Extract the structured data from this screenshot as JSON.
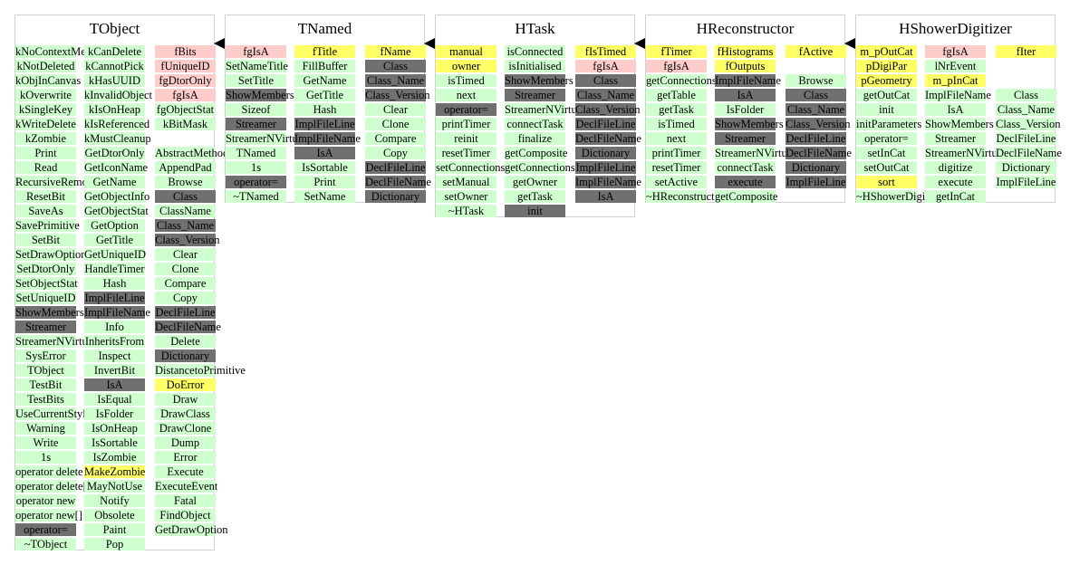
{
  "classes": [
    {
      "name": "TObject",
      "columns": [
        [
          {
            "t": "kNoContextMenu",
            "c": "g"
          },
          {
            "t": "kNotDeleted",
            "c": "g"
          },
          {
            "t": "kObjInCanvas",
            "c": "g"
          },
          {
            "t": "kOverwrite",
            "c": "g"
          },
          {
            "t": "kSingleKey",
            "c": "g"
          },
          {
            "t": "kWriteDelete",
            "c": "g"
          },
          {
            "t": "kZombie",
            "c": "g"
          },
          {
            "t": "Print",
            "c": "g"
          },
          {
            "t": "Read",
            "c": "g"
          },
          {
            "t": "RecursiveRemove",
            "c": "g"
          },
          {
            "t": "ResetBit",
            "c": "g"
          },
          {
            "t": "SaveAs",
            "c": "g"
          },
          {
            "t": "SavePrimitive",
            "c": "g"
          },
          {
            "t": "SetBit",
            "c": "g"
          },
          {
            "t": "SetDrawOption",
            "c": "g"
          },
          {
            "t": "SetDtorOnly",
            "c": "g"
          },
          {
            "t": "SetObjectStat",
            "c": "g"
          },
          {
            "t": "SetUniqueID",
            "c": "g"
          },
          {
            "t": "ShowMembers",
            "c": "d"
          },
          {
            "t": "Streamer",
            "c": "d"
          },
          {
            "t": "StreamerNVirtual",
            "c": "g"
          },
          {
            "t": "SysError",
            "c": "g"
          },
          {
            "t": "TObject",
            "c": "g"
          },
          {
            "t": "TestBit",
            "c": "g"
          },
          {
            "t": "TestBits",
            "c": "g"
          },
          {
            "t": "UseCurrentStyle",
            "c": "g"
          },
          {
            "t": "Warning",
            "c": "g"
          },
          {
            "t": "Write",
            "c": "g"
          },
          {
            "t": "1s",
            "c": "g"
          },
          {
            "t": "operator delete",
            "c": "g"
          },
          {
            "t": "operator delete[]",
            "c": "g"
          },
          {
            "t": "operator new",
            "c": "g"
          },
          {
            "t": "operator new[]",
            "c": "g"
          },
          {
            "t": "operator=",
            "c": "d"
          },
          {
            "t": "~TObject",
            "c": "g"
          }
        ],
        [
          {
            "t": "kCanDelete",
            "c": "g"
          },
          {
            "t": "kCannotPick",
            "c": "g"
          },
          {
            "t": "kHasUUID",
            "c": "g"
          },
          {
            "t": "kInvalidObject",
            "c": "g"
          },
          {
            "t": "kIsOnHeap",
            "c": "g"
          },
          {
            "t": "kIsReferenced",
            "c": "g"
          },
          {
            "t": "kMustCleanup",
            "c": "g"
          },
          {
            "t": "GetDtorOnly",
            "c": "g"
          },
          {
            "t": "GetIconName",
            "c": "g"
          },
          {
            "t": "GetName",
            "c": "g"
          },
          {
            "t": "GetObjectInfo",
            "c": "g"
          },
          {
            "t": "GetObjectStat",
            "c": "g"
          },
          {
            "t": "GetOption",
            "c": "g"
          },
          {
            "t": "GetTitle",
            "c": "g"
          },
          {
            "t": "GetUniqueID",
            "c": "g"
          },
          {
            "t": "HandleTimer",
            "c": "g"
          },
          {
            "t": "Hash",
            "c": "g"
          },
          {
            "t": "ImplFileLine",
            "c": "d"
          },
          {
            "t": "ImplFileName",
            "c": "d"
          },
          {
            "t": "Info",
            "c": "g"
          },
          {
            "t": "InheritsFrom",
            "c": "g"
          },
          {
            "t": "Inspect",
            "c": "g"
          },
          {
            "t": "InvertBit",
            "c": "g"
          },
          {
            "t": "IsA",
            "c": "d"
          },
          {
            "t": "IsEqual",
            "c": "g"
          },
          {
            "t": "IsFolder",
            "c": "g"
          },
          {
            "t": "IsOnHeap",
            "c": "g"
          },
          {
            "t": "IsSortable",
            "c": "g"
          },
          {
            "t": "IsZombie",
            "c": "g"
          },
          {
            "t": "MakeZombie",
            "c": "y"
          },
          {
            "t": "MayNotUse",
            "c": "g"
          },
          {
            "t": "Notify",
            "c": "g"
          },
          {
            "t": "Obsolete",
            "c": "g"
          },
          {
            "t": "Paint",
            "c": "g"
          },
          {
            "t": "Pop",
            "c": "g"
          }
        ],
        [
          {
            "t": "fBits",
            "c": "p"
          },
          {
            "t": "fUniqueID",
            "c": "p"
          },
          {
            "t": "fgDtorOnly",
            "c": "p"
          },
          {
            "t": "fgIsA",
            "c": "p"
          },
          {
            "t": "fgObjectStat",
            "c": "g"
          },
          {
            "t": "kBitMask",
            "c": "g"
          },
          {
            "t": "",
            "c": "n"
          },
          {
            "t": "AbstractMethod",
            "c": "g"
          },
          {
            "t": "AppendPad",
            "c": "g"
          },
          {
            "t": "Browse",
            "c": "g"
          },
          {
            "t": "Class",
            "c": "d"
          },
          {
            "t": "ClassName",
            "c": "g"
          },
          {
            "t": "Class_Name",
            "c": "d"
          },
          {
            "t": "Class_Version",
            "c": "d"
          },
          {
            "t": "Clear",
            "c": "g"
          },
          {
            "t": "Clone",
            "c": "g"
          },
          {
            "t": "Compare",
            "c": "g"
          },
          {
            "t": "Copy",
            "c": "g"
          },
          {
            "t": "DeclFileLine",
            "c": "d"
          },
          {
            "t": "DeclFileName",
            "c": "d"
          },
          {
            "t": "Delete",
            "c": "g"
          },
          {
            "t": "Dictionary",
            "c": "d"
          },
          {
            "t": "DistancetoPrimitive",
            "c": "g"
          },
          {
            "t": "DoError",
            "c": "y"
          },
          {
            "t": "Draw",
            "c": "g"
          },
          {
            "t": "DrawClass",
            "c": "g"
          },
          {
            "t": "DrawClone",
            "c": "g"
          },
          {
            "t": "Dump",
            "c": "g"
          },
          {
            "t": "Error",
            "c": "g"
          },
          {
            "t": "Execute",
            "c": "g"
          },
          {
            "t": "ExecuteEvent",
            "c": "g"
          },
          {
            "t": "Fatal",
            "c": "g"
          },
          {
            "t": "FindObject",
            "c": "g"
          },
          {
            "t": "GetDrawOption",
            "c": "g"
          }
        ]
      ]
    },
    {
      "name": "TNamed",
      "columns": [
        [
          {
            "t": "fgIsA",
            "c": "p"
          },
          {
            "t": "SetNameTitle",
            "c": "g"
          },
          {
            "t": "SetTitle",
            "c": "g"
          },
          {
            "t": "ShowMembers",
            "c": "d"
          },
          {
            "t": "Sizeof",
            "c": "g"
          },
          {
            "t": "Streamer",
            "c": "d"
          },
          {
            "t": "StreamerNVirtual",
            "c": "g"
          },
          {
            "t": "TNamed",
            "c": "g"
          },
          {
            "t": "1s",
            "c": "g"
          },
          {
            "t": "operator=",
            "c": "d"
          },
          {
            "t": "~TNamed",
            "c": "g"
          }
        ],
        [
          {
            "t": "fTitle",
            "c": "y"
          },
          {
            "t": "FillBuffer",
            "c": "g"
          },
          {
            "t": "GetName",
            "c": "g"
          },
          {
            "t": "GetTitle",
            "c": "g"
          },
          {
            "t": "Hash",
            "c": "g"
          },
          {
            "t": "ImplFileLine",
            "c": "d"
          },
          {
            "t": "ImplFileName",
            "c": "d"
          },
          {
            "t": "IsA",
            "c": "d"
          },
          {
            "t": "IsSortable",
            "c": "g"
          },
          {
            "t": "Print",
            "c": "g"
          },
          {
            "t": "SetName",
            "c": "g"
          }
        ],
        [
          {
            "t": "fName",
            "c": "y"
          },
          {
            "t": "Class",
            "c": "d"
          },
          {
            "t": "Class_Name",
            "c": "d"
          },
          {
            "t": "Class_Version",
            "c": "d"
          },
          {
            "t": "Clear",
            "c": "g"
          },
          {
            "t": "Clone",
            "c": "g"
          },
          {
            "t": "Compare",
            "c": "g"
          },
          {
            "t": "Copy",
            "c": "g"
          },
          {
            "t": "DeclFileLine",
            "c": "d"
          },
          {
            "t": "DeclFileName",
            "c": "d"
          },
          {
            "t": "Dictionary",
            "c": "d"
          }
        ]
      ]
    },
    {
      "name": "HTask",
      "columns": [
        [
          {
            "t": "manual",
            "c": "y"
          },
          {
            "t": "owner",
            "c": "y"
          },
          {
            "t": "isTimed",
            "c": "g"
          },
          {
            "t": "next",
            "c": "g"
          },
          {
            "t": "operator=",
            "c": "d"
          },
          {
            "t": "printTimer",
            "c": "g"
          },
          {
            "t": "reinit",
            "c": "g"
          },
          {
            "t": "resetTimer",
            "c": "g"
          },
          {
            "t": "setConnections",
            "c": "g"
          },
          {
            "t": "setManual",
            "c": "g"
          },
          {
            "t": "setOwner",
            "c": "g"
          },
          {
            "t": "~HTask",
            "c": "g"
          }
        ],
        [
          {
            "t": "isConnected",
            "c": "g"
          },
          {
            "t": "isInitialised",
            "c": "g"
          },
          {
            "t": "ShowMembers",
            "c": "d"
          },
          {
            "t": "Streamer",
            "c": "d"
          },
          {
            "t": "StreamerNVirtual",
            "c": "g"
          },
          {
            "t": "connectTask",
            "c": "g"
          },
          {
            "t": "finalize",
            "c": "g"
          },
          {
            "t": "getComposite",
            "c": "g"
          },
          {
            "t": "getConnections",
            "c": "g"
          },
          {
            "t": "getOwner",
            "c": "g"
          },
          {
            "t": "getTask",
            "c": "g"
          },
          {
            "t": "init",
            "c": "d"
          }
        ],
        [
          {
            "t": "fIsTimed",
            "c": "y"
          },
          {
            "t": "fgIsA",
            "c": "p"
          },
          {
            "t": "Class",
            "c": "d"
          },
          {
            "t": "Class_Name",
            "c": "d"
          },
          {
            "t": "Class_Version",
            "c": "d"
          },
          {
            "t": "DeclFileLine",
            "c": "d"
          },
          {
            "t": "DeclFileName",
            "c": "d"
          },
          {
            "t": "Dictionary",
            "c": "d"
          },
          {
            "t": "ImplFileLine",
            "c": "d"
          },
          {
            "t": "ImplFileName",
            "c": "d"
          },
          {
            "t": "IsA",
            "c": "d"
          }
        ]
      ]
    },
    {
      "name": "HReconstructor",
      "columns": [
        [
          {
            "t": "fTimer",
            "c": "y"
          },
          {
            "t": "fgIsA",
            "c": "p"
          },
          {
            "t": "getConnections",
            "c": "g"
          },
          {
            "t": "getTable",
            "c": "g"
          },
          {
            "t": "getTask",
            "c": "g"
          },
          {
            "t": "isTimed",
            "c": "g"
          },
          {
            "t": "next",
            "c": "g"
          },
          {
            "t": "printTimer",
            "c": "g"
          },
          {
            "t": "resetTimer",
            "c": "g"
          },
          {
            "t": "setActive",
            "c": "g"
          },
          {
            "t": "~HReconstructor",
            "c": "g"
          }
        ],
        [
          {
            "t": "fHistograms",
            "c": "y"
          },
          {
            "t": "fOutputs",
            "c": "y"
          },
          {
            "t": "ImplFileName",
            "c": "d"
          },
          {
            "t": "IsA",
            "c": "d"
          },
          {
            "t": "IsFolder",
            "c": "g"
          },
          {
            "t": "ShowMembers",
            "c": "d"
          },
          {
            "t": "Streamer",
            "c": "d"
          },
          {
            "t": "StreamerNVirtual",
            "c": "g"
          },
          {
            "t": "connectTask",
            "c": "g"
          },
          {
            "t": "execute",
            "c": "d"
          },
          {
            "t": "getComposite",
            "c": "g"
          }
        ],
        [
          {
            "t": "fActive",
            "c": "y"
          },
          {
            "t": "",
            "c": "n"
          },
          {
            "t": "Browse",
            "c": "g"
          },
          {
            "t": "Class",
            "c": "d"
          },
          {
            "t": "Class_Name",
            "c": "d"
          },
          {
            "t": "Class_Version",
            "c": "d"
          },
          {
            "t": "DeclFileLine",
            "c": "d"
          },
          {
            "t": "DeclFileName",
            "c": "d"
          },
          {
            "t": "Dictionary",
            "c": "d"
          },
          {
            "t": "ImplFileLine",
            "c": "d"
          }
        ]
      ]
    },
    {
      "name": "HShowerDigitizer",
      "columns": [
        [
          {
            "t": "m_pOutCat",
            "c": "y"
          },
          {
            "t": "pDigiPar",
            "c": "y"
          },
          {
            "t": "pGeometry",
            "c": "y"
          },
          {
            "t": "getOutCat",
            "c": "g"
          },
          {
            "t": "init",
            "c": "g"
          },
          {
            "t": "initParameters",
            "c": "g"
          },
          {
            "t": "operator=",
            "c": "g"
          },
          {
            "t": "setInCat",
            "c": "g"
          },
          {
            "t": "setOutCat",
            "c": "g"
          },
          {
            "t": "sort",
            "c": "y"
          },
          {
            "t": "~HShowerDigitizer",
            "c": "g"
          }
        ],
        [
          {
            "t": "fgIsA",
            "c": "p"
          },
          {
            "t": "lNrEvent",
            "c": "g"
          },
          {
            "t": "m_pInCat",
            "c": "y"
          },
          {
            "t": "ImplFileName",
            "c": "g"
          },
          {
            "t": "IsA",
            "c": "g"
          },
          {
            "t": "ShowMembers",
            "c": "g"
          },
          {
            "t": "Streamer",
            "c": "g"
          },
          {
            "t": "StreamerNVirtual",
            "c": "g"
          },
          {
            "t": "digitize",
            "c": "g"
          },
          {
            "t": "execute",
            "c": "g"
          },
          {
            "t": "getInCat",
            "c": "g"
          }
        ],
        [
          {
            "t": "fIter",
            "c": "y"
          },
          {
            "t": "",
            "c": "n"
          },
          {
            "t": "",
            "c": "n"
          },
          {
            "t": "Class",
            "c": "g"
          },
          {
            "t": "Class_Name",
            "c": "g"
          },
          {
            "t": "Class_Version",
            "c": "g"
          },
          {
            "t": "DeclFileLine",
            "c": "g"
          },
          {
            "t": "DeclFileName",
            "c": "g"
          },
          {
            "t": "Dictionary",
            "c": "g"
          },
          {
            "t": "ImplFileLine",
            "c": "g"
          }
        ]
      ]
    }
  ]
}
